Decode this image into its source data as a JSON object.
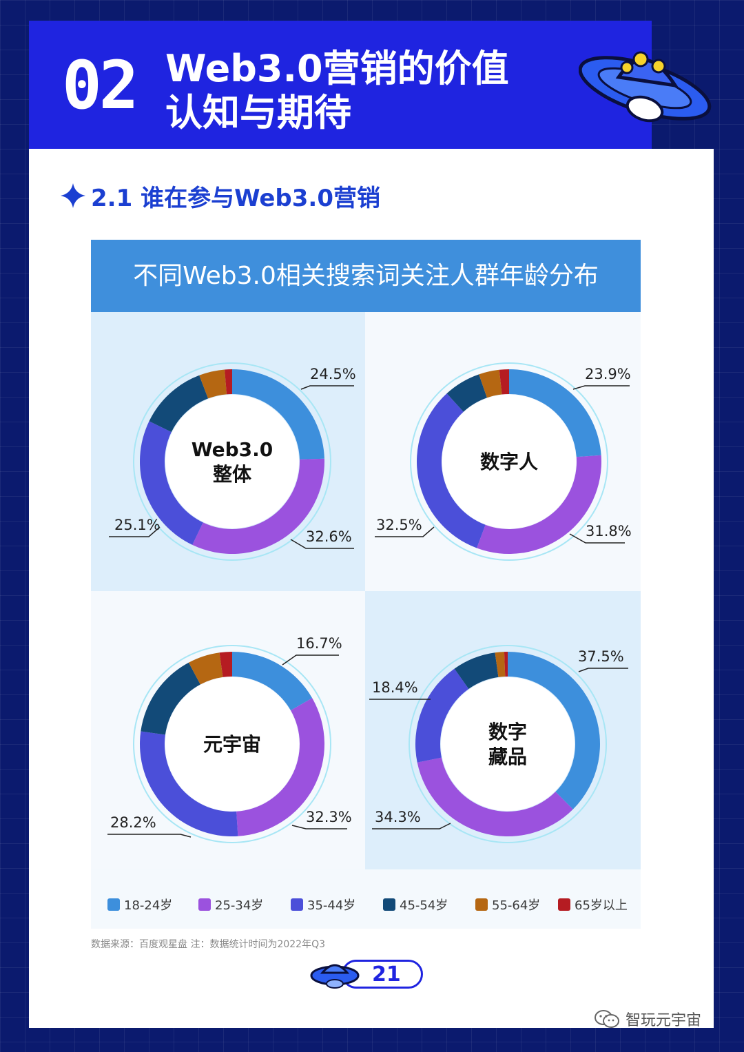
{
  "header": {
    "number": "02",
    "title_line1": "Web3.0营销的价值",
    "title_line2": "认知与期待"
  },
  "section": {
    "title": "2.1 谁在参与Web3.0营销"
  },
  "chart_data": {
    "type": "pie",
    "variant": "donut",
    "title": "不同Web3.0相关搜索词关注人群年龄分布",
    "legend_position": "bottom",
    "categories": [
      "18-24岁",
      "25-34岁",
      "35-44岁",
      "45-54岁",
      "55-64岁",
      "65岁以上"
    ],
    "colors": [
      "#3d8fdc",
      "#9b52de",
      "#4b4fd9",
      "#124a78",
      "#b56712",
      "#b51c22"
    ],
    "charts": [
      {
        "center_label": [
          "Web3.0",
          "整体"
        ],
        "values": [
          24.5,
          32.6,
          25.1,
          12.0,
          4.5,
          1.3
        ],
        "labels": [
          "24.5%",
          "32.6%",
          "25.1%"
        ]
      },
      {
        "center_label": [
          "数字人"
        ],
        "values": [
          23.9,
          31.8,
          32.5,
          6.5,
          3.6,
          1.7
        ],
        "labels": [
          "23.9%",
          "31.8%",
          "32.5%"
        ]
      },
      {
        "center_label": [
          "元宇宙"
        ],
        "values": [
          16.7,
          32.3,
          28.2,
          15.0,
          5.6,
          2.2
        ],
        "labels": [
          "16.7%",
          "32.3%",
          "28.2%"
        ]
      },
      {
        "center_label": [
          "数字",
          "藏品"
        ],
        "values": [
          37.5,
          34.3,
          18.4,
          7.6,
          1.6,
          0.6
        ],
        "labels": [
          "37.5%",
          "34.3%",
          "18.4%"
        ]
      }
    ]
  },
  "legend": {
    "items": [
      "18-24岁",
      "25-34岁",
      "35-44岁",
      "45-54岁",
      "55-64岁",
      "65岁以上"
    ]
  },
  "footer": {
    "source": "数据来源：百度观星盘 注：数据统计时间为2022年Q3",
    "page_number": "21",
    "wechat_name": "智玩元宇宙"
  }
}
